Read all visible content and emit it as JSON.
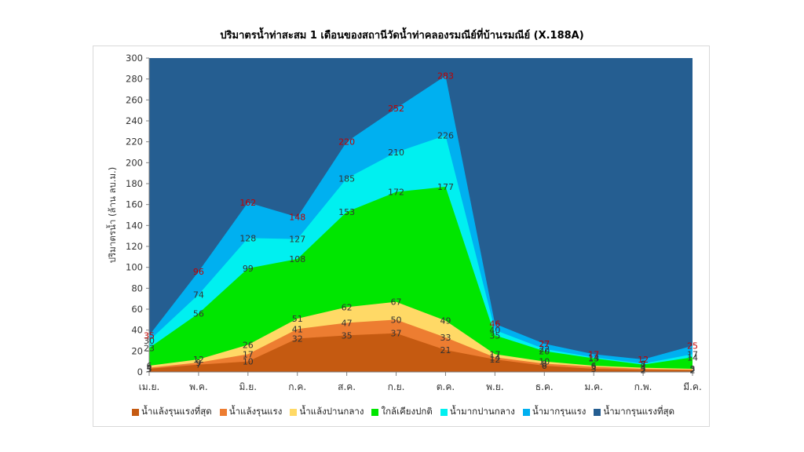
{
  "chart_data": {
    "type": "area",
    "title": "ปริมาตรน้ำท่าสะสม 1 เดือนของสถานีวัดน้ำท่าคลองรมณีย์ที่บ้านรมณีย์ (X.188A)",
    "ylabel": "ปริมาตรน้ำ (ล้าน ลบ.ม.)",
    "xlabel": "",
    "ylim": [
      0,
      300
    ],
    "yticks": [
      0,
      20,
      40,
      60,
      80,
      100,
      120,
      140,
      160,
      180,
      200,
      220,
      240,
      260,
      280,
      300
    ],
    "categories": [
      "เม.ย.",
      "พ.ค.",
      "มิ.ย.",
      "ก.ค.",
      "ส.ค.",
      "ก.ย.",
      "ต.ค.",
      "พ.ย.",
      "ธ.ค.",
      "ม.ค.",
      "ก.พ.",
      "มี.ค."
    ],
    "series": [
      {
        "name": "น้ำแล้งรุนแรงที่สุด",
        "color": "#c55a11",
        "values": [
          3,
          7,
          10,
          32,
          35,
          37,
          21,
          12,
          6,
          3,
          2,
          2
        ]
      },
      {
        "name": "น้ำแล้งรุนแรง",
        "color": "#ed7d31",
        "values": [
          4,
          9,
          17,
          41,
          47,
          50,
          33,
          14,
          8,
          5,
          3,
          2
        ]
      },
      {
        "name": "น้ำแล้งปานกลาง",
        "color": "#ffd966",
        "values": [
          6,
          12,
          26,
          51,
          62,
          67,
          49,
          17,
          10,
          6,
          4,
          3
        ]
      },
      {
        "name": "ใกล้เคียงปกติ",
        "color": "#00e600",
        "values": [
          23,
          56,
          99,
          108,
          153,
          172,
          177,
          35,
          20,
          13,
          7,
          14
        ]
      },
      {
        "name": "น้ำมากปานกลาง",
        "color": "#00f0f0",
        "values": [
          30,
          74,
          128,
          127,
          185,
          210,
          226,
          40,
          22,
          14,
          8,
          17
        ]
      },
      {
        "name": "น้ำมากรุนแรง",
        "color": "#00b0f0",
        "values": [
          35,
          96,
          162,
          148,
          220,
          252,
          283,
          46,
          27,
          17,
          12,
          25
        ]
      },
      {
        "name": "น้ำมากรุนแรงที่สุด",
        "color": "#255e91",
        "values": [
          300,
          300,
          300,
          300,
          300,
          300,
          300,
          300,
          300,
          300,
          300,
          300
        ]
      }
    ],
    "data_labels": [
      {
        "series": 0,
        "values": [
          3,
          7,
          10,
          32,
          35,
          37,
          21,
          12,
          6,
          3,
          2,
          2
        ]
      },
      {
        "series": 1,
        "values": [
          4,
          9,
          17,
          41,
          47,
          50,
          33,
          14,
          8,
          5,
          3,
          2
        ]
      },
      {
        "series": 2,
        "values": [
          6,
          12,
          26,
          51,
          62,
          67,
          49,
          17,
          10,
          6,
          4,
          3
        ]
      },
      {
        "series": 3,
        "values": [
          23,
          56,
          99,
          108,
          153,
          172,
          177,
          35,
          20,
          13,
          7,
          14
        ]
      },
      {
        "series": 4,
        "values": [
          30,
          74,
          128,
          127,
          185,
          210,
          226,
          40,
          22,
          14,
          8,
          17
        ]
      },
      {
        "series": 5,
        "values": [
          35,
          96,
          162,
          148,
          220,
          252,
          283,
          46,
          27,
          17,
          12,
          25
        ]
      }
    ],
    "label_colors": {
      "default": "#333333",
      "max": "#c00000"
    },
    "legend_position": "bottom",
    "grid": false
  }
}
